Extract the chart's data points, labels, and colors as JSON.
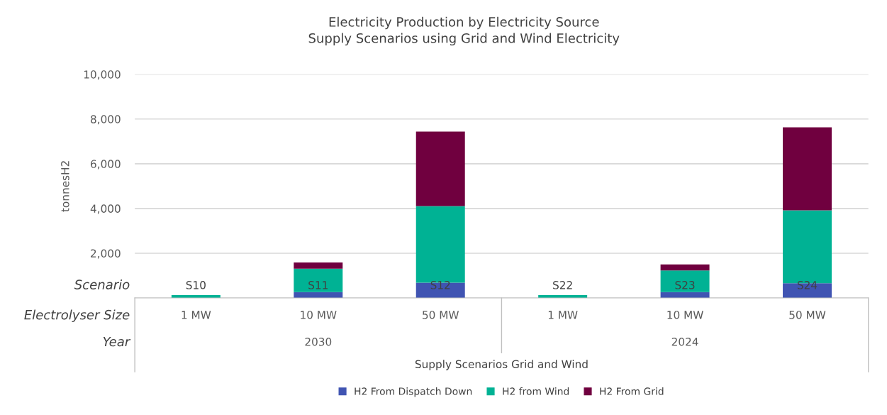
{
  "chart_data": {
    "type": "bar",
    "stacked": true,
    "title": "Electricity Production by Electricity Source\nSupply Scenarios using Grid and Wind Electricity",
    "ylabel": "tonnesH2",
    "categories": [
      "S10",
      "S11",
      "S12",
      "S22",
      "S23",
      "S24"
    ],
    "series": [
      {
        "name": "H2 From Dispatch Down",
        "color": "#4054b2",
        "values": [
          null,
          260,
          680,
          null,
          260,
          660
        ]
      },
      {
        "name": "H2 from Wind",
        "color": "#00b294",
        "values": [
          130,
          1050,
          3430,
          130,
          970,
          3260
        ]
      },
      {
        "name": "H2 From Grid",
        "color": "#70003f",
        "values": [
          null,
          280,
          3330,
          null,
          270,
          3710
        ]
      }
    ],
    "ylim": [
      0,
      10000
    ],
    "yticks": [
      {
        "value": 0,
        "label": null
      },
      {
        "value": 2000,
        "label": "2,000"
      },
      {
        "value": 4000,
        "label": "4,000"
      },
      {
        "value": 6000,
        "label": "6,000"
      },
      {
        "value": 8000,
        "label": "8,000"
      },
      {
        "value": 10000,
        "label": "10,000"
      }
    ],
    "grid": "y",
    "legend": "bottom",
    "annotations": [
      "Scenario",
      "Electrolyser Size",
      "Year",
      "1 MW",
      "10 MW",
      "50 MW",
      "1 MW",
      "10 MW",
      "50 MW",
      "2030",
      "2024",
      "Supply Scenarios Grid and Wind"
    ]
  }
}
